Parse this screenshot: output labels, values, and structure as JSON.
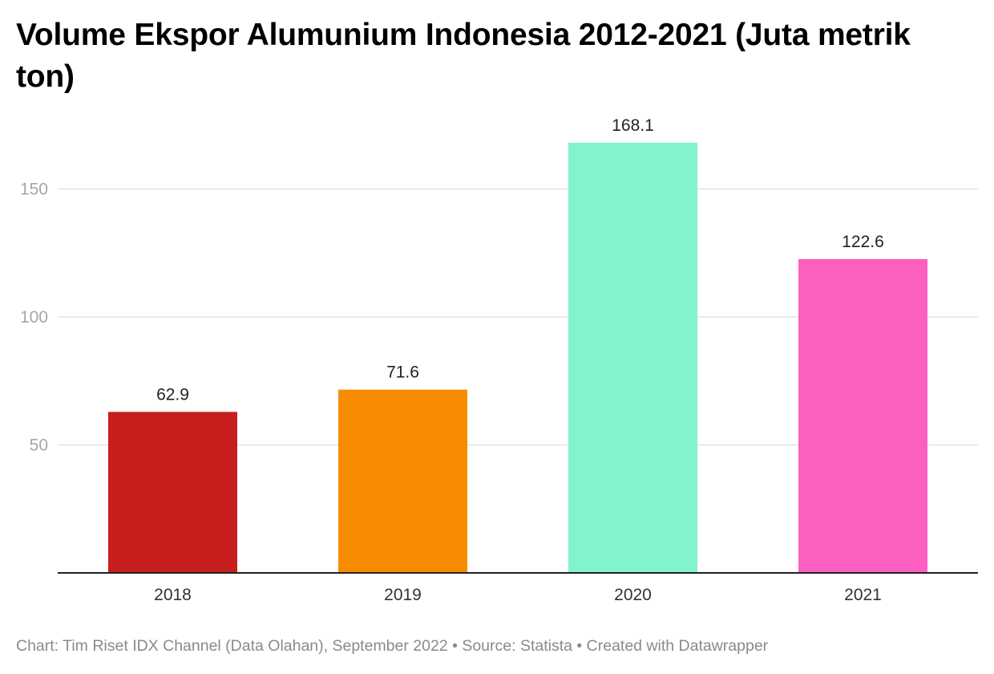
{
  "chart_data": {
    "type": "bar",
    "title": "Volume Ekspor Alumunium Indonesia 2012-2021 (Juta metrik ton)",
    "categories": [
      "2018",
      "2019",
      "2020",
      "2021"
    ],
    "values": [
      62.9,
      71.6,
      168.1,
      122.6
    ],
    "value_labels": [
      "62.9",
      "71.6",
      "168.1",
      "122.6"
    ],
    "bar_colors": [
      "#c71e1d",
      "#f78b00",
      "#82f4cb",
      "#fd5fc0"
    ],
    "yticks": [
      50,
      100,
      150
    ],
    "ylim": [
      0,
      168.1
    ],
    "grid": true,
    "xlabel": "",
    "ylabel": ""
  },
  "footer": "Chart: Tim Riset IDX Channel (Data Olahan), September 2022 • Source: Statista • Created with Datawrapper"
}
